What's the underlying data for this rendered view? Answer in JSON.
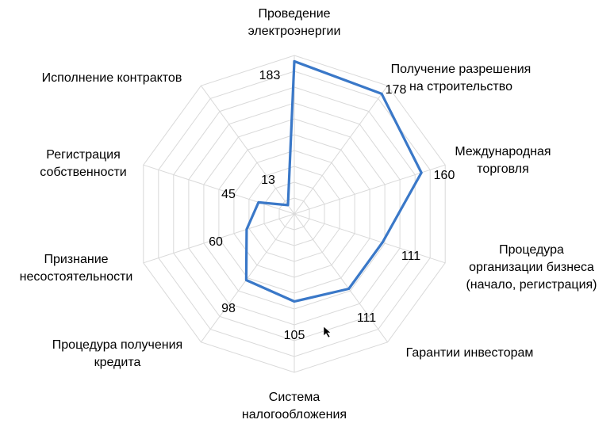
{
  "chart_data": {
    "type": "radar",
    "categories": [
      [
        "Проведение",
        "электроэнергии"
      ],
      [
        "Получение разрешения",
        "на строительство"
      ],
      [
        "Международная",
        "торговля"
      ],
      [
        "Процедура",
        "организации бизнеса",
        "(начало, регистрация)"
      ],
      [
        "Гарантии инвесторам"
      ],
      [
        "Система",
        "налогообложения"
      ],
      [
        "Процедура получения",
        "кредита"
      ],
      [
        "Признание",
        "несостоятельности"
      ],
      [
        "Регистрация",
        "собственности"
      ],
      [
        "Исполнение контрактов"
      ]
    ],
    "series": [
      {
        "values": [
          183,
          178,
          160,
          111,
          111,
          105,
          98,
          60,
          45,
          13
        ]
      }
    ],
    "data_labels": [
      "183",
      "178",
      "160",
      "111",
      "111",
      "105",
      "98",
      "60",
      "45",
      "13"
    ],
    "rmax": 190,
    "grid_rings": 10,
    "grid": true,
    "legend": "none",
    "colors": {
      "series": "#3a78c8",
      "grid": "#d9d9d9"
    }
  }
}
